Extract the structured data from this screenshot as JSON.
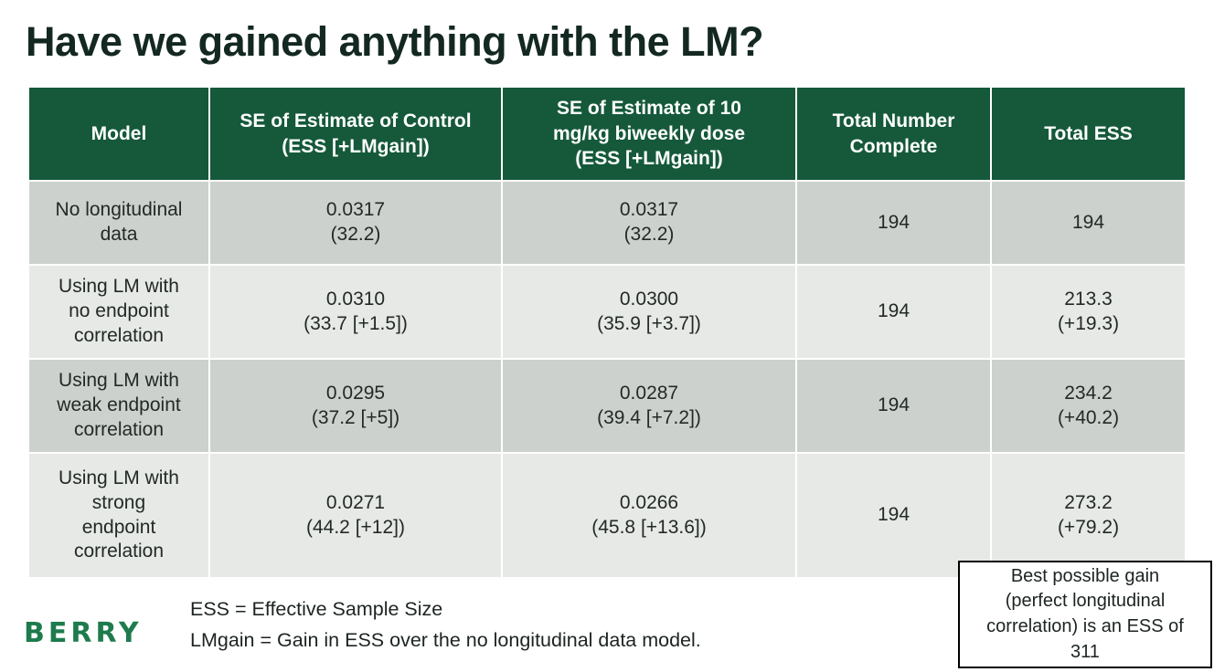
{
  "title": "Have we gained anything with the LM?",
  "colors": {
    "header_green": "#15593a",
    "row_dark": "#cdd1cd",
    "row_light": "#e7e9e7",
    "logo_green": "#1e7b4d",
    "title_text": "#132820"
  },
  "table": {
    "headers": [
      "Model",
      "SE of Estimate of Control\n(ESS [+LMgain])",
      "SE of Estimate of 10\nmg/kg biweekly dose\n(ESS [+LMgain])",
      "Total Number\nComplete",
      "Total ESS"
    ],
    "rows": [
      {
        "cells": [
          "No longitudinal\ndata",
          "0.0317\n(32.2)",
          "0.0317\n(32.2)",
          "194",
          "194"
        ]
      },
      {
        "cells": [
          "Using LM with\nno endpoint\ncorrelation",
          "0.0310\n(33.7 [+1.5])",
          "0.0300\n(35.9 [+3.7])",
          "194",
          "213.3\n(+19.3)"
        ]
      },
      {
        "cells": [
          "Using LM with\nweak endpoint\ncorrelation",
          "0.0295\n(37.2 [+5])",
          "0.0287\n(39.4 [+7.2])",
          "194",
          "234.2\n(+40.2)"
        ]
      },
      {
        "cells": [
          "Using LM with\nstrong\nendpoint\ncorrelation",
          "0.0271\n(44.2 [+12])",
          "0.0266\n(45.8 [+13.6])",
          "194",
          "273.2\n(+79.2)"
        ]
      }
    ]
  },
  "footer": {
    "logo": "BERRY",
    "footnotes": [
      "ESS = Effective Sample Size",
      "LMgain = Gain in ESS over the no longitudinal data model."
    ]
  },
  "callout": {
    "text": "Best possible gain\n(perfect longitudinal\ncorrelation) is an ESS of\n311"
  }
}
